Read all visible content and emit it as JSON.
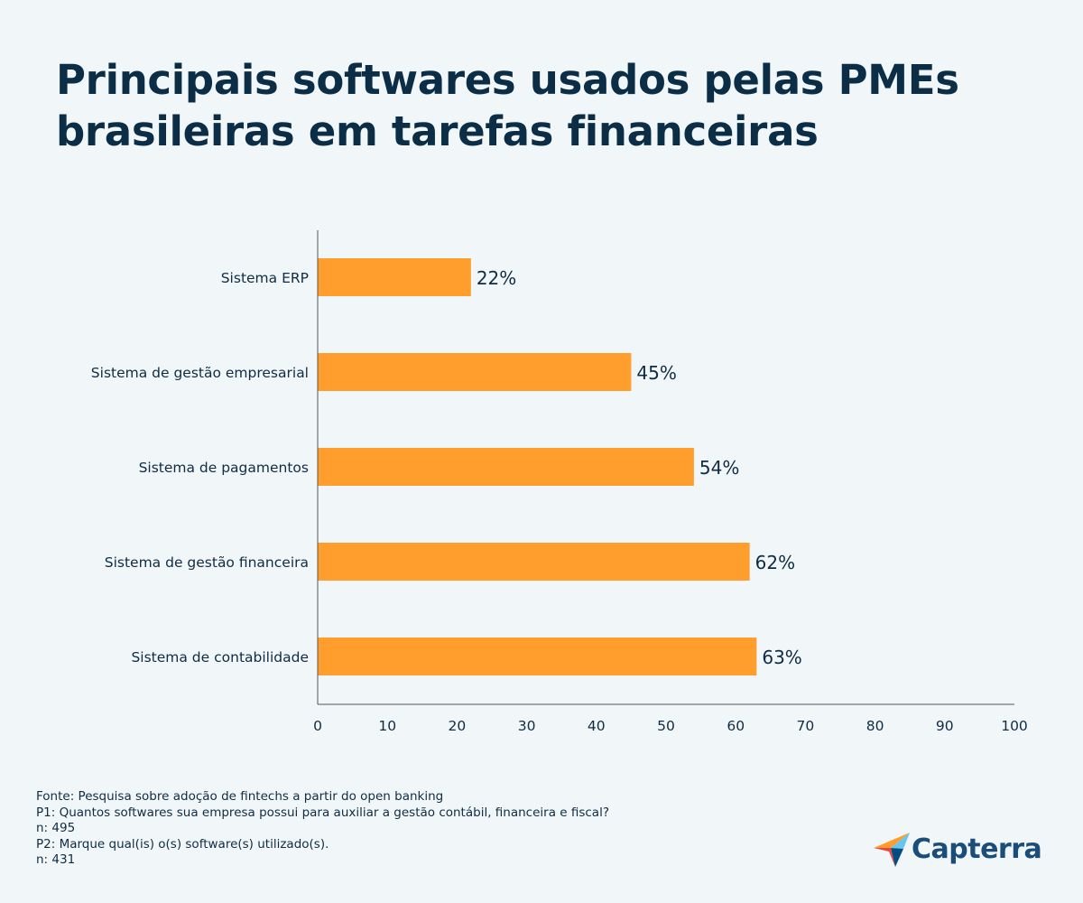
{
  "title": {
    "line1": "Principais softwares usados pelas PMEs",
    "line2": "brasileiras em tarefas financeiras"
  },
  "colors": {
    "background": "#f1f6f8",
    "bar": "#ff9e2c",
    "text": "#0f2c44",
    "axis": "#555555",
    "brand": "#1b4d7a"
  },
  "chart_data": {
    "type": "bar",
    "orientation": "horizontal",
    "categories": [
      "Sistema ERP",
      "Sistema de gestão empresarial",
      "Sistema de pagamentos",
      "Sistema de gestão financeira",
      "Sistema de contabilidade"
    ],
    "values": [
      22,
      45,
      54,
      62,
      63
    ],
    "value_labels": [
      "22%",
      "45%",
      "54%",
      "62%",
      "63%"
    ],
    "xlim": [
      0,
      100
    ],
    "xticks": [
      "0",
      "10",
      "20",
      "30",
      "40",
      "50",
      "60",
      "70",
      "80",
      "90",
      "100"
    ],
    "grid": false,
    "legend": "none"
  },
  "footer": {
    "lines": [
      "Fonte: Pesquisa sobre adoção de fintechs a partir do open banking",
      "P1: Quantos softwares sua empresa possui para auxiliar a gestão contábil, financeira e fiscal?",
      "n: 495",
      "P2: Marque qual(is) o(s) software(s) utilizado(s).",
      "n: 431"
    ]
  },
  "logo": {
    "text": "Capterra",
    "icon": "capterra-logo-icon"
  }
}
